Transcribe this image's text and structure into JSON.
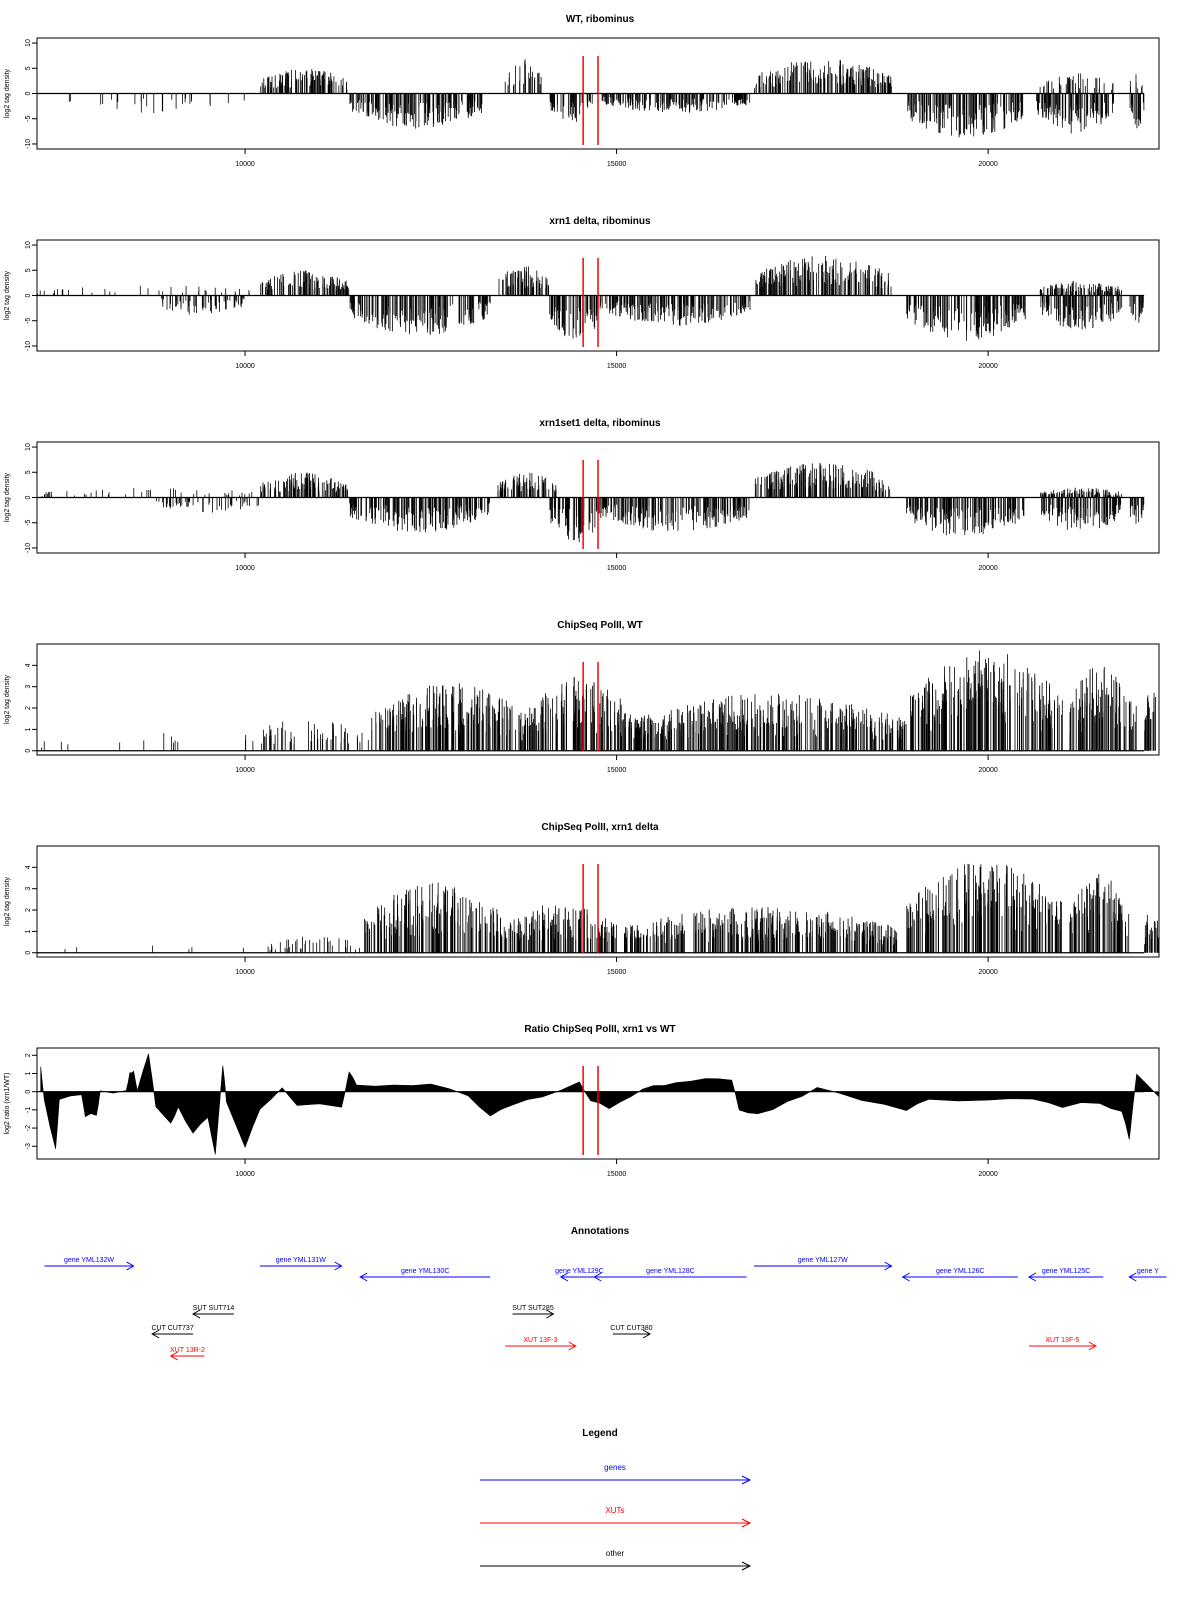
{
  "colors": {
    "axis": "#000000",
    "bars": "#000000",
    "marker": "#ff0000",
    "gene": "#0000ff",
    "xut": "#ff0000",
    "other": "#000000"
  },
  "chart_data": [
    {
      "type": "bar",
      "title": "WT, ribominus",
      "ylabel": "log2 tag density",
      "xlim": [
        7200,
        22300
      ],
      "ylim": [
        -11,
        11
      ],
      "xticks": [
        10000,
        15000,
        20000
      ],
      "yticks": [
        -10,
        -5,
        0,
        5,
        10
      ],
      "ytick_labels": [
        "-10",
        "-5",
        "0",
        "5",
        "10"
      ],
      "markers": [
        14550,
        14750
      ],
      "profile": [
        {
          "x": [
            7200,
            10200
          ],
          "y": [
            0,
            0
          ],
          "density": 0.08
        },
        {
          "x": [
            7600,
            10000
          ],
          "y": [
            -4,
            0
          ],
          "density": 0.12
        },
        {
          "x": [
            10200,
            11400
          ],
          "y": [
            5,
            0
          ],
          "density": 1
        },
        {
          "x": [
            11400,
            13200
          ],
          "y": [
            -7,
            0
          ],
          "density": 1
        },
        {
          "x": [
            13200,
            13950
          ],
          "y": [
            0,
            0
          ],
          "density": 0.05
        },
        {
          "x": [
            13500,
            14000
          ],
          "y": [
            7,
            0
          ],
          "density": 0.6
        },
        {
          "x": [
            14100,
            14700
          ],
          "y": [
            -6,
            0
          ],
          "density": 0.9
        },
        {
          "x": [
            14800,
            16800
          ],
          "y": [
            -4,
            0
          ],
          "density": 1
        },
        {
          "x": [
            16850,
            18700
          ],
          "y": [
            7,
            0
          ],
          "density": 1
        },
        {
          "x": [
            18900,
            20500
          ],
          "y": [
            -9,
            0
          ],
          "density": 1
        },
        {
          "x": [
            20650,
            21700
          ],
          "y": [
            -8,
            0
          ],
          "density": 1
        },
        {
          "x": [
            20700,
            21700
          ],
          "y": [
            4,
            0
          ],
          "density": 0.4
        },
        {
          "x": [
            21900,
            22100
          ],
          "y": [
            -7,
            0
          ],
          "density": 1
        },
        {
          "x": [
            21900,
            22100
          ],
          "y": [
            4,
            0
          ],
          "density": 0.4
        }
      ]
    },
    {
      "type": "bar",
      "title": "xrn1 delta, ribominus",
      "ylabel": "log2 tag density",
      "xlim": [
        7200,
        22300
      ],
      "ylim": [
        -11,
        11
      ],
      "xticks": [
        10000,
        15000,
        20000
      ],
      "yticks": [
        -10,
        -5,
        0,
        5,
        10
      ],
      "ytick_labels": [
        "-10",
        "-5",
        "0",
        "5",
        "10"
      ],
      "markers": [
        14550,
        14750
      ],
      "profile": [
        {
          "x": [
            7200,
            10200
          ],
          "y": [
            2,
            0
          ],
          "density": 0.12
        },
        {
          "x": [
            8800,
            10000
          ],
          "y": [
            -4,
            0
          ],
          "density": 0.5
        },
        {
          "x": [
            10200,
            11400
          ],
          "y": [
            5,
            0
          ],
          "density": 1
        },
        {
          "x": [
            11400,
            13300
          ],
          "y": [
            -8,
            0
          ],
          "density": 1
        },
        {
          "x": [
            13400,
            14100
          ],
          "y": [
            6,
            0
          ],
          "density": 1
        },
        {
          "x": [
            14100,
            14800
          ],
          "y": [
            -9,
            0
          ],
          "density": 1
        },
        {
          "x": [
            14800,
            16800
          ],
          "y": [
            -6,
            0
          ],
          "density": 1
        },
        {
          "x": [
            16850,
            18700
          ],
          "y": [
            8,
            0
          ],
          "density": 1
        },
        {
          "x": [
            18900,
            20500
          ],
          "y": [
            -9,
            0
          ],
          "density": 1
        },
        {
          "x": [
            20700,
            21800
          ],
          "y": [
            3,
            0
          ],
          "density": 1
        },
        {
          "x": [
            20700,
            21800
          ],
          "y": [
            -7,
            0
          ],
          "density": 1
        },
        {
          "x": [
            21900,
            22100
          ],
          "y": [
            -6,
            0
          ],
          "density": 1
        }
      ]
    },
    {
      "type": "bar",
      "title": "xrn1set1 delta, ribominus",
      "ylabel": "log2 tag density",
      "xlim": [
        7200,
        22300
      ],
      "ylim": [
        -11,
        11
      ],
      "xticks": [
        10000,
        15000,
        20000
      ],
      "yticks": [
        -10,
        -5,
        0,
        5,
        10
      ],
      "ytick_labels": [
        "-10",
        "-5",
        "0",
        "5",
        "10"
      ],
      "markers": [
        14550,
        14750
      ],
      "profile": [
        {
          "x": [
            7200,
            10200
          ],
          "y": [
            2,
            0
          ],
          "density": 0.15
        },
        {
          "x": [
            8800,
            10200
          ],
          "y": [
            -3,
            0
          ],
          "density": 0.4
        },
        {
          "x": [
            10200,
            11400
          ],
          "y": [
            5,
            0
          ],
          "density": 1
        },
        {
          "x": [
            11400,
            13300
          ],
          "y": [
            -7,
            0
          ],
          "density": 1
        },
        {
          "x": [
            13400,
            14200
          ],
          "y": [
            5,
            0
          ],
          "density": 1
        },
        {
          "x": [
            14100,
            14800
          ],
          "y": [
            -9,
            0
          ],
          "density": 1
        },
        {
          "x": [
            14800,
            16800
          ],
          "y": [
            -7,
            0
          ],
          "density": 1
        },
        {
          "x": [
            16850,
            18700
          ],
          "y": [
            7,
            0
          ],
          "density": 1
        },
        {
          "x": [
            18900,
            20500
          ],
          "y": [
            -8,
            0
          ],
          "density": 1
        },
        {
          "x": [
            20700,
            21800
          ],
          "y": [
            2,
            0
          ],
          "density": 1
        },
        {
          "x": [
            20700,
            21800
          ],
          "y": [
            -7,
            0
          ],
          "density": 1
        },
        {
          "x": [
            21900,
            22100
          ],
          "y": [
            -6,
            0
          ],
          "density": 1
        }
      ]
    },
    {
      "type": "bar",
      "title": "ChipSeq PolII, WT",
      "ylabel": "log2 tag density",
      "xlim": [
        7200,
        22300
      ],
      "ylim": [
        -0.2,
        5
      ],
      "xticks": [
        10000,
        15000,
        20000
      ],
      "yticks": [
        0,
        1,
        2,
        3,
        4
      ],
      "ytick_labels": [
        "0",
        "1",
        "2",
        "3",
        "4"
      ],
      "markers": [
        14550,
        14750
      ],
      "profile": [
        {
          "x": [
            7200,
            10700
          ],
          "y": [
            1,
            0
          ],
          "density": 0.04
        },
        {
          "x": [
            10000,
            11700
          ],
          "y": [
            1.5,
            0
          ],
          "density": 0.35
        },
        {
          "x": [
            11700,
            13800
          ],
          "y": [
            3.2,
            1.5
          ],
          "density": 1
        },
        {
          "x": [
            13800,
            15200
          ],
          "y": [
            3.5,
            1.5
          ],
          "density": 1
        },
        {
          "x": [
            15200,
            18900
          ],
          "y": [
            2.7,
            1.5
          ],
          "density": 1
        },
        {
          "x": [
            18950,
            21000
          ],
          "y": [
            4.8,
            2.5
          ],
          "density": 1
        },
        {
          "x": [
            21100,
            22000
          ],
          "y": [
            4.3,
            2.0
          ],
          "density": 1
        },
        {
          "x": [
            22100,
            22300
          ],
          "y": [
            3,
            1.5
          ],
          "density": 1
        }
      ]
    },
    {
      "type": "bar",
      "title": "ChipSeq PolII, xrn1 delta",
      "ylabel": "log2 tag density",
      "xlim": [
        7200,
        22300
      ],
      "ylim": [
        -0.2,
        5
      ],
      "xticks": [
        10000,
        15000,
        20000
      ],
      "yticks": [
        0,
        1,
        2,
        3,
        4
      ],
      "ytick_labels": [
        "0",
        "1",
        "2",
        "3",
        "4"
      ],
      "markers": [
        14550,
        14750
      ],
      "profile": [
        {
          "x": [
            7200,
            10300
          ],
          "y": [
            0.4,
            0
          ],
          "density": 0.02
        },
        {
          "x": [
            10300,
            11600
          ],
          "y": [
            0.8,
            0
          ],
          "density": 0.3
        },
        {
          "x": [
            11600,
            13500
          ],
          "y": [
            3.3,
            1.0
          ],
          "density": 1
        },
        {
          "x": [
            13500,
            15000
          ],
          "y": [
            2.4,
            1.0
          ],
          "density": 1
        },
        {
          "x": [
            15100,
            18800
          ],
          "y": [
            2.2,
            1.0
          ],
          "density": 1
        },
        {
          "x": [
            18900,
            21000
          ],
          "y": [
            4.3,
            2.5
          ],
          "density": 1
        },
        {
          "x": [
            21100,
            21900
          ],
          "y": [
            3.7,
            2.0
          ],
          "density": 1
        },
        {
          "x": [
            22100,
            22300
          ],
          "y": [
            2.3,
            1.5
          ],
          "density": 1
        }
      ]
    },
    {
      "type": "area",
      "title": "Ratio ChipSeq PolII, xrn1 vs WT",
      "ylabel": "log2 ratio (xrn1/WT)",
      "xlim": [
        7200,
        22300
      ],
      "ylim": [
        -3.7,
        2.4
      ],
      "xticks": [
        10000,
        15000,
        20000
      ],
      "yticks": [
        -3,
        -2,
        -1,
        0,
        1,
        2
      ],
      "ytick_labels": [
        "-3",
        "-2",
        "-1",
        "0",
        "1",
        "2"
      ],
      "markers": [
        14550,
        14750
      ],
      "points": [
        [
          7250,
          1.3
        ],
        [
          7300,
          -0.5
        ],
        [
          7450,
          -3.2
        ],
        [
          7500,
          -0.5
        ],
        [
          7800,
          -0.1
        ],
        [
          7850,
          -1.3
        ],
        [
          8000,
          -1.3
        ],
        [
          8050,
          0
        ],
        [
          8400,
          0
        ],
        [
          8450,
          1.1
        ],
        [
          8500,
          1.1
        ],
        [
          8550,
          0
        ],
        [
          8700,
          2.1
        ],
        [
          8800,
          -0.9
        ],
        [
          9000,
          -1.8
        ],
        [
          9100,
          -0.8
        ],
        [
          9300,
          -2.3
        ],
        [
          9500,
          -1.4
        ],
        [
          9600,
          -3.5
        ],
        [
          9700,
          1.5
        ],
        [
          9750,
          -0.5
        ],
        [
          10000,
          -3.0
        ],
        [
          10200,
          -1.0
        ],
        [
          10500,
          0.2
        ],
        [
          10700,
          -0.7
        ],
        [
          11300,
          -0.8
        ],
        [
          11400,
          1.1
        ],
        [
          11500,
          0.3
        ],
        [
          12000,
          0.3
        ],
        [
          12500,
          0.4
        ],
        [
          13000,
          -0.2
        ],
        [
          13300,
          -1.4
        ],
        [
          13600,
          -0.7
        ],
        [
          14000,
          -0.3
        ],
        [
          14500,
          0.6
        ],
        [
          14650,
          -0.5
        ],
        [
          14900,
          -0.9
        ],
        [
          15200,
          -0.2
        ],
        [
          15500,
          0.3
        ],
        [
          15800,
          0.5
        ],
        [
          16200,
          0.7
        ],
        [
          16550,
          0.6
        ],
        [
          16650,
          -1.0
        ],
        [
          16900,
          -1.2
        ],
        [
          17300,
          -0.6
        ],
        [
          17700,
          0.3
        ],
        [
          18300,
          -0.5
        ],
        [
          18900,
          -1.0
        ],
        [
          19200,
          -0.4
        ],
        [
          20000,
          -0.5
        ],
        [
          20600,
          -0.4
        ],
        [
          21000,
          -0.8
        ],
        [
          21500,
          -0.6
        ],
        [
          21800,
          -1.1
        ],
        [
          21900,
          -2.6
        ],
        [
          22000,
          1.0
        ],
        [
          22300,
          -0.3
        ]
      ]
    }
  ],
  "annotations": {
    "title": "Annotations",
    "genes": [
      {
        "label": "gene YML132W",
        "x1": 7300,
        "x2": 8500,
        "dir": "right",
        "row": 0
      },
      {
        "label": "gene YML131W",
        "x1": 10200,
        "x2": 11300,
        "dir": "right",
        "row": 0
      },
      {
        "label": "gene YML130C",
        "x1": 11550,
        "x2": 13300,
        "dir": "left",
        "row": 1
      },
      {
        "label": "gene YML129C",
        "x1": 14250,
        "x2": 14750,
        "dir": "left",
        "row": 1
      },
      {
        "label": "gene YML128C",
        "x1": 14700,
        "x2": 16750,
        "dir": "left",
        "row": 1
      },
      {
        "label": "gene YML127W",
        "x1": 16850,
        "x2": 18700,
        "dir": "right",
        "row": 0
      },
      {
        "label": "gene YML126C",
        "x1": 18850,
        "x2": 20400,
        "dir": "left",
        "row": 1
      },
      {
        "label": "gene YML125C",
        "x1": 20550,
        "x2": 21550,
        "dir": "left",
        "row": 1
      },
      {
        "label": "gene Y",
        "x1": 21900,
        "x2": 22400,
        "dir": "left",
        "row": 1
      }
    ],
    "xuts": [
      {
        "label": "XUT 13R-2",
        "x1": 9000,
        "x2": 9450,
        "dir": "left",
        "row": 5
      },
      {
        "label": "XUT 13F-3",
        "x1": 13500,
        "x2": 14450,
        "dir": "right",
        "row": 4
      },
      {
        "label": "XUT 13F-5",
        "x1": 20550,
        "x2": 21450,
        "dir": "right",
        "row": 4
      }
    ],
    "other": [
      {
        "label": "SUT SUT714",
        "x1": 9300,
        "x2": 9850,
        "dir": "left",
        "row": 2
      },
      {
        "label": "CUT CUT737",
        "x1": 8750,
        "x2": 9300,
        "dir": "left",
        "row": 3
      },
      {
        "label": "SUT SUT285",
        "x1": 13600,
        "x2": 14150,
        "dir": "right",
        "row": 2
      },
      {
        "label": "CUT CUT380",
        "x1": 14950,
        "x2": 15450,
        "dir": "right",
        "row": 3
      }
    ]
  },
  "legend": {
    "title": "Legend",
    "items": [
      {
        "label": "genes",
        "kind": "gene"
      },
      {
        "label": "XUTs",
        "kind": "xut"
      },
      {
        "label": "other",
        "kind": "other"
      }
    ]
  }
}
